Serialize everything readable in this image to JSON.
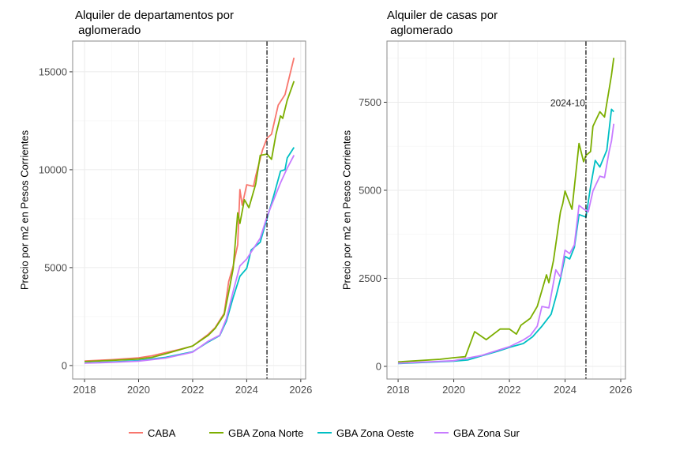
{
  "colors": {
    "CABA": "#F8766D",
    "GBA Zona Norte": "#7CAE00",
    "GBA Zona Oeste": "#00BFC4",
    "GBA Zona Sur": "#C77CFF"
  },
  "legend": {
    "placement": "bottom",
    "entries": [
      "CABA",
      "GBA Zona Norte",
      "GBA Zona Oeste",
      "GBA Zona Sur"
    ]
  },
  "chart_data": [
    {
      "type": "line",
      "title_lines": [
        "Alquiler de departamentos por",
        " aglomerado"
      ],
      "xlabel": "",
      "ylabel": "Precio por m2 en Pesos Corrientes",
      "xlim": [
        2017.56,
        2026.18
      ],
      "ylim": [
        -690,
        16570
      ],
      "xticks": [
        2018,
        2020,
        2022,
        2024,
        2026
      ],
      "yticks": [
        0,
        5000,
        10000,
        15000
      ],
      "ytick_labels": [
        "0",
        "5000",
        "10000",
        "15000"
      ],
      "grid": true,
      "reference_line": {
        "date": "2024-10",
        "style": "dot-dash",
        "label": ""
      },
      "series": [
        {
          "name": "CABA",
          "points": [
            [
              "2018-01",
              230
            ],
            [
              "2019-01",
              300
            ],
            [
              "2020-01",
              390
            ],
            [
              "2020-07",
              500
            ],
            [
              "2021-01",
              660
            ],
            [
              "2021-07",
              820
            ],
            [
              "2022-01",
              995
            ],
            [
              "2022-08",
              1600
            ],
            [
              "2022-11",
              1935
            ],
            [
              "2023-03",
              2670
            ],
            [
              "2023-05",
              4290
            ],
            [
              "2023-07",
              5090
            ],
            [
              "2023-09",
              6170
            ],
            [
              "2023-10",
              8990
            ],
            [
              "2023-11",
              8190
            ],
            [
              "2024-01",
              9230
            ],
            [
              "2024-04",
              9150
            ],
            [
              "2024-05",
              9680
            ],
            [
              "2024-08",
              11010
            ],
            [
              "2024-10",
              11610
            ],
            [
              "2024-12",
              11810
            ],
            [
              "2025-03",
              13300
            ],
            [
              "2025-06",
              13830
            ],
            [
              "2025-10",
              15720
            ]
          ]
        },
        {
          "name": "GBA Zona Norte",
          "points": [
            [
              "2018-01",
              200
            ],
            [
              "2019-01",
              260
            ],
            [
              "2020-01",
              330
            ],
            [
              "2020-07",
              420
            ],
            [
              "2021-01",
              600
            ],
            [
              "2021-07",
              800
            ],
            [
              "2022-01",
              1000
            ],
            [
              "2022-08",
              1550
            ],
            [
              "2022-11",
              1900
            ],
            [
              "2023-03",
              2600
            ],
            [
              "2023-05",
              3750
            ],
            [
              "2023-07",
              4960
            ],
            [
              "2023-09",
              7800
            ],
            [
              "2023-10",
              7260
            ],
            [
              "2023-12",
              8470
            ],
            [
              "2024-02",
              8060
            ],
            [
              "2024-05",
              9270
            ],
            [
              "2024-07",
              10730
            ],
            [
              "2024-10",
              10800
            ],
            [
              "2024-12",
              10530
            ],
            [
              "2025-02",
              11810
            ],
            [
              "2025-04",
              12750
            ],
            [
              "2025-05",
              12620
            ],
            [
              "2025-07",
              13550
            ],
            [
              "2025-10",
              14520
            ]
          ]
        },
        {
          "name": "GBA Zona Oeste",
          "points": [
            [
              "2018-01",
              130
            ],
            [
              "2019-01",
              180
            ],
            [
              "2020-01",
              250
            ],
            [
              "2021-01",
              420
            ],
            [
              "2022-01",
              700
            ],
            [
              "2022-08",
              1210
            ],
            [
              "2023-01",
              1530
            ],
            [
              "2023-04",
              2270
            ],
            [
              "2023-07",
              3480
            ],
            [
              "2023-10",
              4560
            ],
            [
              "2024-01",
              4960
            ],
            [
              "2024-03",
              5900
            ],
            [
              "2024-07",
              6300
            ],
            [
              "2024-10",
              7510
            ],
            [
              "2025-01",
              8670
            ],
            [
              "2025-04",
              9930
            ],
            [
              "2025-06",
              10000
            ],
            [
              "2025-07",
              10600
            ],
            [
              "2025-10",
              11140
            ]
          ]
        },
        {
          "name": "GBA Zona Sur",
          "points": [
            [
              "2018-01",
              120
            ],
            [
              "2019-01",
              160
            ],
            [
              "2020-01",
              220
            ],
            [
              "2021-01",
              380
            ],
            [
              "2022-01",
              680
            ],
            [
              "2022-08",
              1250
            ],
            [
              "2023-01",
              1550
            ],
            [
              "2023-04",
              2400
            ],
            [
              "2023-07",
              3800
            ],
            [
              "2023-10",
              5090
            ],
            [
              "2024-01",
              5440
            ],
            [
              "2024-03",
              5800
            ],
            [
              "2024-07",
              6500
            ],
            [
              "2024-10",
              7600
            ],
            [
              "2025-01",
              8470
            ],
            [
              "2025-04",
              9330
            ],
            [
              "2025-07",
              10080
            ],
            [
              "2025-10",
              10740
            ]
          ]
        }
      ]
    },
    {
      "type": "line",
      "title_lines": [
        "Alquiler de casas por",
        " aglomerado"
      ],
      "xlabel": "",
      "ylabel": "Precio por m2 en Pesos Corrientes",
      "xlim": [
        2017.6,
        2026.17
      ],
      "ylim": [
        -360,
        9237
      ],
      "xticks": [
        2018,
        2020,
        2022,
        2024,
        2026
      ],
      "yticks": [
        0,
        2500,
        5000,
        7500
      ],
      "ytick_labels": [
        "0",
        "2500",
        "5000",
        "7500"
      ],
      "grid": true,
      "reference_line": {
        "date": "2024-10",
        "style": "dot-dash",
        "label": "2024-10"
      },
      "series": [
        {
          "name": "GBA Zona Norte",
          "points": [
            [
              "2018-01",
              127
            ],
            [
              "2019-07",
              200
            ],
            [
              "2020-01",
              245
            ],
            [
              "2020-06",
              275
            ],
            [
              "2020-10",
              985
            ],
            [
              "2021-03",
              760
            ],
            [
              "2021-09",
              1060
            ],
            [
              "2022-01",
              1060
            ],
            [
              "2022-04",
              915
            ],
            [
              "2022-06",
              1170
            ],
            [
              "2022-10",
              1365
            ],
            [
              "2023-01",
              1700
            ],
            [
              "2023-05",
              2600
            ],
            [
              "2023-06",
              2375
            ],
            [
              "2023-08",
              3000
            ],
            [
              "2023-11",
              4390
            ],
            [
              "2023-12",
              4620
            ],
            [
              "2024-01",
              4980
            ],
            [
              "2024-04",
              4460
            ],
            [
              "2024-07",
              6330
            ],
            [
              "2024-09",
              5810
            ],
            [
              "2024-10",
              5990
            ],
            [
              "2024-12",
              6100
            ],
            [
              "2025-01",
              6815
            ],
            [
              "2025-04",
              7230
            ],
            [
              "2025-06",
              7080
            ],
            [
              "2025-09",
              8270
            ],
            [
              "2025-10",
              8760
            ]
          ]
        },
        {
          "name": "GBA Zona Oeste",
          "points": [
            [
              "2018-01",
              80
            ],
            [
              "2020-01",
              150
            ],
            [
              "2020-07",
              180
            ],
            [
              "2021-01",
              300
            ],
            [
              "2021-08",
              430
            ],
            [
              "2022-01",
              540
            ],
            [
              "2022-07",
              650
            ],
            [
              "2022-11",
              840
            ],
            [
              "2023-03",
              1140
            ],
            [
              "2023-07",
              1480
            ],
            [
              "2023-09",
              1960
            ],
            [
              "2023-11",
              2490
            ],
            [
              "2024-01",
              3120
            ],
            [
              "2024-03",
              3050
            ],
            [
              "2024-05",
              3380
            ],
            [
              "2024-07",
              4310
            ],
            [
              "2024-10",
              4240
            ],
            [
              "2024-12",
              5100
            ],
            [
              "2025-02",
              5850
            ],
            [
              "2025-04",
              5660
            ],
            [
              "2025-07",
              6140
            ],
            [
              "2025-09",
              7300
            ],
            [
              "2025-10",
              7230
            ]
          ]
        },
        {
          "name": "GBA Zona Sur",
          "points": [
            [
              "2018-01",
              90
            ],
            [
              "2020-01",
              160
            ],
            [
              "2021-01",
              310
            ],
            [
              "2022-01",
              560
            ],
            [
              "2022-07",
              750
            ],
            [
              "2022-10",
              875
            ],
            [
              "2023-01",
              1140
            ],
            [
              "2023-03",
              1700
            ],
            [
              "2023-06",
              1660
            ],
            [
              "2023-09",
              2740
            ],
            [
              "2023-11",
              2540
            ],
            [
              "2024-01",
              3300
            ],
            [
              "2024-03",
              3200
            ],
            [
              "2024-05",
              3450
            ],
            [
              "2024-07",
              4570
            ],
            [
              "2024-09",
              4470
            ],
            [
              "2024-11",
              4390
            ],
            [
              "2025-01",
              4980
            ],
            [
              "2025-04",
              5400
            ],
            [
              "2025-06",
              5360
            ],
            [
              "2025-08",
              6100
            ],
            [
              "2025-09",
              6400
            ],
            [
              "2025-10",
              6890
            ]
          ]
        }
      ]
    }
  ]
}
